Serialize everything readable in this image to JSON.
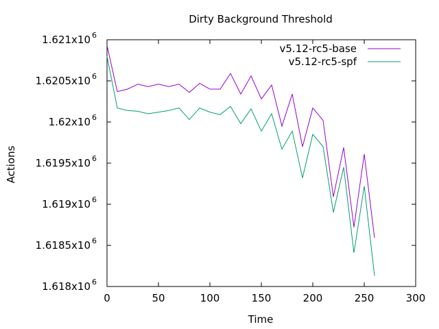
{
  "chart_data": {
    "type": "line",
    "title": "Dirty Background Threshold",
    "xlabel": "Time",
    "ylabel": "Actions",
    "xlim": [
      0,
      300
    ],
    "ylim": [
      1618000,
      1621000
    ],
    "x_ticks": [
      0,
      50,
      100,
      150,
      200,
      250,
      300
    ],
    "y_ticks": [
      {
        "value": 1618000,
        "mantissa": "1.618x10",
        "exp": "6"
      },
      {
        "value": 1618500,
        "mantissa": "1.6185x10",
        "exp": "6"
      },
      {
        "value": 1619000,
        "mantissa": "1.619x10",
        "exp": "6"
      },
      {
        "value": 1619500,
        "mantissa": "1.6195x10",
        "exp": "6"
      },
      {
        "value": 1620000,
        "mantissa": "1.62x10",
        "exp": "6"
      },
      {
        "value": 1620500,
        "mantissa": "1.6205x10",
        "exp": "6"
      },
      {
        "value": 1621000,
        "mantissa": "1.621x10",
        "exp": "6"
      }
    ],
    "grid": false,
    "legend_position": "top-right",
    "x": [
      0,
      10,
      20,
      30,
      40,
      50,
      60,
      70,
      80,
      90,
      100,
      110,
      120,
      130,
      140,
      150,
      160,
      170,
      180,
      190,
      200,
      210,
      220,
      230,
      240,
      250,
      260
    ],
    "series": [
      {
        "name": "v5.12-rc5-base",
        "color": "#9400d3",
        "values": [
          1620930,
          1620370,
          1620400,
          1620460,
          1620430,
          1620460,
          1620430,
          1620460,
          1620360,
          1620470,
          1620400,
          1620400,
          1620590,
          1620340,
          1620560,
          1620280,
          1620450,
          1619950,
          1620340,
          1619700,
          1620170,
          1620020,
          1619090,
          1619690,
          1618720,
          1619610,
          1618590
        ]
      },
      {
        "name": "v5.12-rc5-spf",
        "color": "#009e73",
        "values": [
          1620800,
          1620170,
          1620140,
          1620130,
          1620100,
          1620120,
          1620140,
          1620170,
          1620030,
          1620170,
          1620120,
          1620090,
          1620190,
          1619980,
          1620160,
          1619890,
          1620100,
          1619670,
          1619890,
          1619320,
          1619850,
          1619700,
          1618900,
          1619450,
          1618410,
          1619220,
          1618130
        ]
      }
    ]
  }
}
